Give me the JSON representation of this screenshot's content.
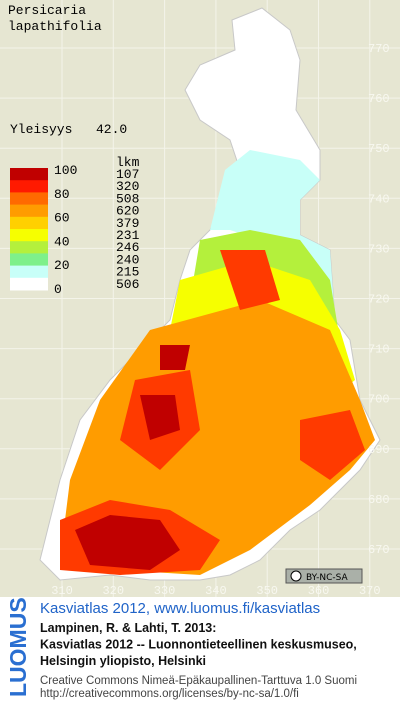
{
  "title_lines": [
    "Persicaria",
    "lapathifolia"
  ],
  "frequency": {
    "label": "Yleisyys",
    "value": "42.0"
  },
  "legend": {
    "scale_labels": [
      100,
      80,
      60,
      40,
      20,
      0
    ],
    "count_header": "lkm",
    "classes": [
      {
        "color": "#c00000",
        "count": 107
      },
      {
        "color": "#ff1a00",
        "count": 320
      },
      {
        "color": "#ff6a00",
        "count": 508
      },
      {
        "color": "#ff9c00",
        "count": 620
      },
      {
        "color": "#ffd000",
        "count": 379
      },
      {
        "color": "#f6ff00",
        "count": 231
      },
      {
        "color": "#b4f03c",
        "count": 246
      },
      {
        "color": "#7ef08a",
        "count": 240
      },
      {
        "color": "#c8fff8",
        "count": 215
      },
      {
        "color": "#ffffff",
        "count": 506
      }
    ]
  },
  "grid": {
    "y_labels": [
      770,
      760,
      750,
      740,
      730,
      720,
      710,
      700,
      690,
      680,
      670
    ],
    "x_labels": [
      310,
      320,
      330,
      340,
      350,
      360,
      370
    ]
  },
  "license_badge": "BY-NC-SA",
  "logo": "LUOMUS",
  "footer": {
    "link": "Kasviatlas 2012, www.luomus.fi/kasviatlas",
    "citation": [
      "Lampinen, R. & Lahti, T. 2013:",
      "Kasviatlas 2012 -- Luonnontieteellinen keskusmuseo,",
      "Helsingin yliopisto, Helsinki"
    ],
    "license": [
      "Creative Commons Nimeä-Epäkaupallinen-Tarttuva 1.0 Suomi",
      "http://creativecommons.org/licenses/by-nc-sa/1.0/fi"
    ]
  }
}
